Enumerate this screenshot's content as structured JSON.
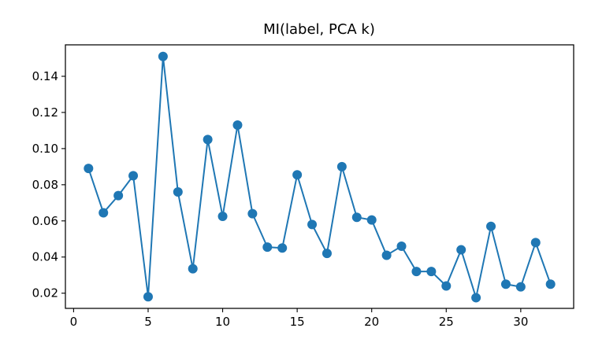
{
  "chart_data": {
    "type": "line",
    "title": "MI(label, PCA k)",
    "xlabel": "",
    "ylabel": "",
    "x": [
      1,
      2,
      3,
      4,
      5,
      6,
      7,
      8,
      9,
      10,
      11,
      12,
      13,
      14,
      15,
      16,
      17,
      18,
      19,
      20,
      21,
      22,
      23,
      24,
      25,
      26,
      27,
      28,
      29,
      30,
      31,
      32
    ],
    "series": [
      {
        "values": [
          0.089,
          0.0645,
          0.074,
          0.085,
          0.018,
          0.151,
          0.076,
          0.0335,
          0.105,
          0.0625,
          0.113,
          0.064,
          0.0455,
          0.045,
          0.0855,
          0.058,
          0.042,
          0.09,
          0.062,
          0.0605,
          0.041,
          0.046,
          0.032,
          0.032,
          0.024,
          0.044,
          0.0175,
          0.057,
          0.025,
          0.0235,
          0.048,
          0.025
        ],
        "color": "#1f77b4"
      }
    ],
    "xlim": [
      -0.55,
      33.55
    ],
    "ylim": [
      0.0116,
      0.1574
    ],
    "xticks": [
      0,
      5,
      10,
      15,
      20,
      25,
      30
    ],
    "yticks": [
      0.02,
      0.04,
      0.06,
      0.08,
      0.1,
      0.12,
      0.14
    ],
    "ytick_labels": [
      "0.02",
      "0.04",
      "0.06",
      "0.08",
      "0.10",
      "0.12",
      "0.14"
    ],
    "grid": false,
    "legend": "none"
  }
}
